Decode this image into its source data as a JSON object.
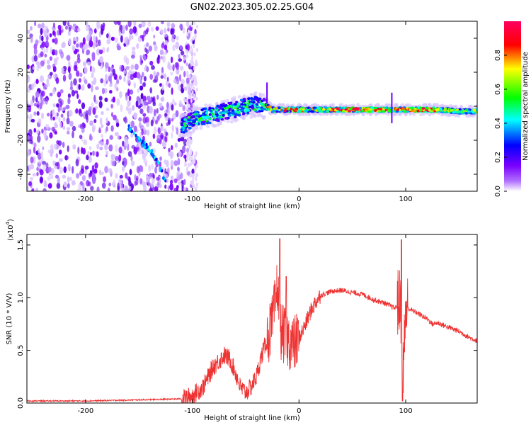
{
  "title": "GN02.2023.305.02.25.G04",
  "chart_data": [
    {
      "type": "heatmap",
      "name": "spectrogram",
      "xlabel": "Height of straight line (km)",
      "ylabel": "Frequency (Hz)",
      "xlim": [
        -255,
        167
      ],
      "ylim": [
        -50,
        50
      ],
      "xticks": [
        -200,
        -100,
        0,
        100
      ],
      "yticks": [
        -40,
        -20,
        0,
        20,
        40
      ],
      "colorbar": {
        "label": "Normalized spectral amplitude",
        "range": [
          0.0,
          1.0
        ],
        "ticks": [
          0.0,
          0.2,
          0.4,
          0.6,
          0.8
        ],
        "colormap": [
          "#ffffff",
          "#7a00ff",
          "#0000ff",
          "#00ffff",
          "#00ff00",
          "#ffff00",
          "#ff0000",
          "#ff0060"
        ]
      },
      "trace": {
        "x": [
          -110,
          -100,
          -90,
          -80,
          -70,
          -60,
          -50,
          -40,
          -35,
          -30,
          -25,
          -20,
          -10,
          0,
          10,
          30,
          60,
          80,
          90,
          110,
          130,
          150,
          167
        ],
        "frequency": [
          -12,
          -8,
          -6,
          -5,
          -3,
          -2,
          0,
          1,
          0,
          0,
          -2,
          -2,
          -2,
          -2,
          -2,
          -2,
          -2,
          -2,
          -2,
          -2,
          -2,
          -3,
          -3
        ]
      },
      "noise_region_x": [
        -255,
        -105
      ],
      "streak": {
        "x": [
          -160,
          -150,
          -140,
          -135,
          -130,
          -125
        ],
        "frequency": [
          -12,
          -20,
          -25,
          -30,
          -37,
          -44
        ]
      }
    },
    {
      "type": "line",
      "name": "snr",
      "xlabel": "Height of straight line (km)",
      "ylabel": "SNR (10 * V/V)",
      "yscale_label": "(x10",
      "yscale_exp": "4",
      "yscale_close": ")",
      "xlim": [
        -255,
        167
      ],
      "ylim": [
        0.0,
        1.6
      ],
      "xticks": [
        -200,
        -100,
        0,
        100
      ],
      "yticks": [
        0.0,
        0.5,
        1.0,
        1.5
      ],
      "color": "#ee3333",
      "series": [
        {
          "x": [
            -255,
            -200,
            -150,
            -110,
            -100,
            -90,
            -80,
            -70,
            -65,
            -60,
            -55,
            -50,
            -45,
            -40,
            -35,
            -30,
            -25,
            -22,
            -20,
            -18,
            -15,
            -10,
            -5,
            0,
            5,
            10,
            15,
            20,
            30,
            40,
            50,
            60,
            70,
            80,
            90,
            94,
            96,
            98,
            100,
            102,
            110,
            120,
            125,
            130,
            140,
            150,
            160,
            167
          ],
          "y": [
            0.02,
            0.02,
            0.03,
            0.04,
            0.07,
            0.15,
            0.35,
            0.45,
            0.42,
            0.3,
            0.15,
            0.1,
            0.15,
            0.25,
            0.45,
            0.6,
            0.75,
            0.95,
            1.15,
            0.7,
            0.65,
            0.6,
            0.55,
            0.62,
            0.72,
            0.85,
            0.95,
            1.02,
            1.06,
            1.07,
            1.05,
            1.03,
            0.98,
            0.95,
            0.9,
            0.95,
            0.88,
            0.35,
            0.9,
            0.9,
            0.86,
            0.8,
            0.75,
            0.76,
            0.72,
            0.68,
            0.62,
            0.59
          ]
        }
      ],
      "spikes": [
        {
          "x": -18,
          "y": 1.56
        },
        {
          "x": -12,
          "y": 1.2
        },
        {
          "x": 96,
          "y": 1.55
        },
        {
          "x": 97,
          "y": 0.02
        }
      ]
    }
  ]
}
